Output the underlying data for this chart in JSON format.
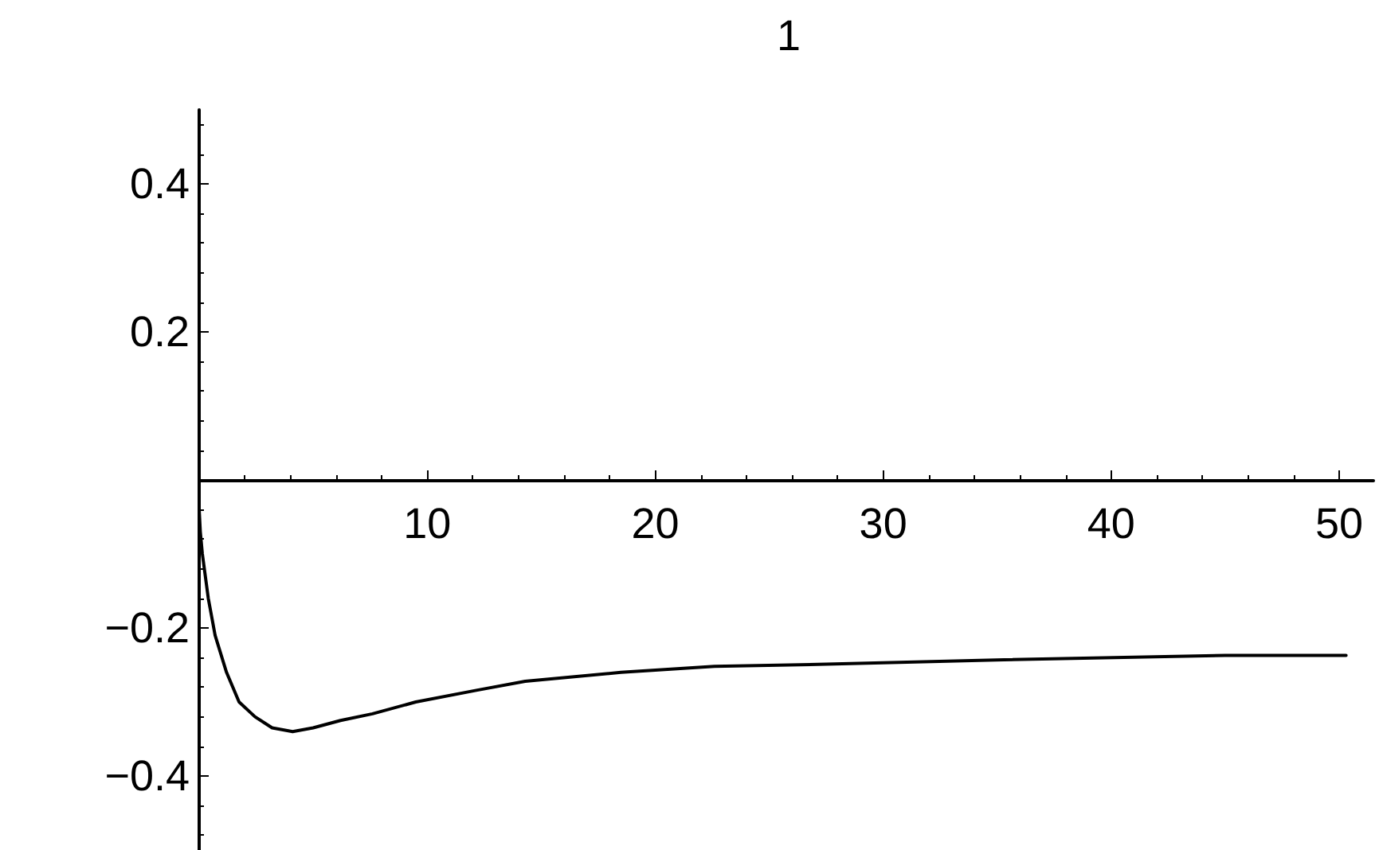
{
  "chart_data": {
    "type": "line",
    "title": "1",
    "x": [
      0,
      0.05,
      0.14,
      0.4,
      0.7,
      1.2,
      1.75,
      2.45,
      3.2,
      4.1,
      5,
      6.2,
      7.6,
      9.5,
      12.2,
      14.3,
      18.5,
      22.6,
      27.5,
      35.3,
      45,
      50.3
    ],
    "series": [
      {
        "color": "#000000",
        "values": [
          -0.04,
          -0.07,
          -0.1,
          -0.16,
          -0.21,
          -0.26,
          -0.3,
          -0.32,
          -0.335,
          -0.34,
          -0.335,
          -0.325,
          -0.316,
          -0.3,
          -0.284,
          -0.272,
          -0.26,
          -0.252,
          -0.249,
          -0.243,
          -0.237,
          -0.237
        ]
      }
    ],
    "xlim": [
      0,
      51.5
    ],
    "ylim": [
      -0.5,
      0.5
    ],
    "xticks": [
      {
        "value": 0,
        "label": null
      },
      10,
      20,
      30,
      40,
      50
    ],
    "yticks": [
      -0.4,
      -0.2,
      {
        "value": 0,
        "label": null
      },
      0.2,
      0.4
    ],
    "grid": false,
    "marker": "none",
    "line_style": "solid"
  }
}
